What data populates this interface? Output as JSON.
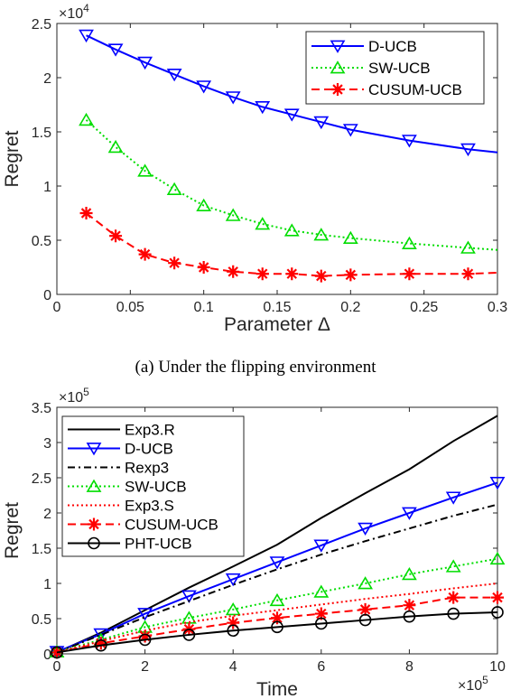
{
  "chart_data": [
    {
      "type": "line",
      "caption": "(a) Under the flipping environment",
      "xlabel": "Parameter Δ",
      "ylabel": "Regret",
      "xlim": [
        0,
        0.3
      ],
      "ylim": [
        0,
        25000
      ],
      "y_multiplier": "×10",
      "y_multiplier_exp": "4",
      "xticks": [
        "0",
        "0.05",
        "0.1",
        "0.15",
        "0.2",
        "0.25",
        "0.3"
      ],
      "yticks": [
        "0",
        "0.5",
        "1",
        "1.5",
        "2",
        "2.5"
      ],
      "legend_position": "top-right",
      "series": [
        {
          "name": "D-UCB",
          "color": "#0000ff",
          "marker": "triangle-down",
          "dash": "solid",
          "x": [
            0.02,
            0.04,
            0.06,
            0.08,
            0.1,
            0.12,
            0.14,
            0.16,
            0.18,
            0.2,
            0.24,
            0.28,
            0.3
          ],
          "y": [
            23900,
            22600,
            21400,
            20300,
            19200,
            18200,
            17300,
            16600,
            15900,
            15200,
            14200,
            13400,
            13100
          ],
          "markers_x": [
            0.02,
            0.04,
            0.06,
            0.08,
            0.1,
            0.12,
            0.14,
            0.16,
            0.18,
            0.2,
            0.24,
            0.28
          ]
        },
        {
          "name": "SW-UCB",
          "color": "#00dd00",
          "marker": "triangle-up",
          "dash": "dotted",
          "x": [
            0.02,
            0.04,
            0.06,
            0.08,
            0.1,
            0.12,
            0.14,
            0.16,
            0.18,
            0.2,
            0.24,
            0.28,
            0.3
          ],
          "y": [
            16100,
            13600,
            11400,
            9700,
            8200,
            7300,
            6500,
            5900,
            5500,
            5200,
            4700,
            4300,
            4100
          ],
          "markers_x": [
            0.02,
            0.04,
            0.06,
            0.08,
            0.1,
            0.12,
            0.14,
            0.16,
            0.18,
            0.2,
            0.24,
            0.28
          ]
        },
        {
          "name": "CUSUM-UCB",
          "color": "#ff0000",
          "marker": "asterisk",
          "dash": "dashed",
          "x": [
            0.02,
            0.04,
            0.06,
            0.08,
            0.1,
            0.12,
            0.14,
            0.16,
            0.18,
            0.2,
            0.24,
            0.28,
            0.3
          ],
          "y": [
            7500,
            5400,
            3700,
            2900,
            2500,
            2100,
            1900,
            1900,
            1700,
            1800,
            1900,
            1900,
            2000
          ],
          "markers_x": [
            0.02,
            0.04,
            0.06,
            0.08,
            0.1,
            0.12,
            0.14,
            0.16,
            0.18,
            0.2,
            0.24,
            0.28
          ]
        }
      ]
    },
    {
      "type": "line",
      "xlabel": "Time",
      "ylabel": "Regret",
      "xlim": [
        0,
        1000000
      ],
      "ylim": [
        0,
        350000
      ],
      "x_multiplier": "×10",
      "x_multiplier_exp": "5",
      "y_multiplier": "×10",
      "y_multiplier_exp": "5",
      "xticks": [
        "0",
        "2",
        "4",
        "6",
        "8",
        "10"
      ],
      "yticks": [
        "0",
        "0.5",
        "1",
        "1.5",
        "2",
        "2.5",
        "3",
        "3.5"
      ],
      "legend_position": "top-left",
      "series": [
        {
          "name": "Exp3.R",
          "color": "#000000",
          "marker": "none",
          "dash": "solid",
          "x": [
            0,
            100000,
            200000,
            300000,
            400000,
            500000,
            600000,
            700000,
            800000,
            900000,
            1000000
          ],
          "y": [
            2000,
            30000,
            62000,
            94000,
            124000,
            155000,
            193000,
            228000,
            262000,
            302000,
            338000
          ],
          "markers_x": []
        },
        {
          "name": "D-UCB",
          "color": "#0000ff",
          "marker": "triangle-down",
          "dash": "solid",
          "x": [
            0,
            100000,
            200000,
            300000,
            400000,
            500000,
            600000,
            700000,
            800000,
            900000,
            1000000
          ],
          "y": [
            3000,
            28000,
            57000,
            82000,
            106000,
            130000,
            154000,
            178000,
            200000,
            222000,
            243000
          ],
          "markers_x": [
            0,
            100000,
            200000,
            300000,
            400000,
            500000,
            600000,
            700000,
            800000,
            900000,
            1000000
          ]
        },
        {
          "name": "Rexp3",
          "color": "#000000",
          "marker": "none",
          "dash": "dashdot",
          "x": [
            0,
            100000,
            200000,
            300000,
            400000,
            500000,
            600000,
            700000,
            800000,
            900000,
            1000000
          ],
          "y": [
            2000,
            27000,
            52000,
            75000,
            98000,
            120000,
            141000,
            160000,
            178000,
            196000,
            212000
          ],
          "markers_x": []
        },
        {
          "name": "SW-UCB",
          "color": "#00dd00",
          "marker": "triangle-up",
          "dash": "dotted",
          "x": [
            0,
            100000,
            200000,
            300000,
            400000,
            500000,
            600000,
            700000,
            800000,
            900000,
            1000000
          ],
          "y": [
            3000,
            20000,
            38000,
            51000,
            63000,
            76000,
            88000,
            100000,
            113000,
            124000,
            135000
          ],
          "markers_x": [
            0,
            100000,
            200000,
            300000,
            400000,
            500000,
            600000,
            700000,
            800000,
            900000,
            1000000
          ]
        },
        {
          "name": "Exp3.S",
          "color": "#ff0000",
          "marker": "none",
          "dash": "dotted",
          "x": [
            0,
            100000,
            200000,
            300000,
            400000,
            500000,
            600000,
            700000,
            800000,
            900000,
            1000000
          ],
          "y": [
            2000,
            18000,
            33000,
            45000,
            54000,
            62000,
            70000,
            78000,
            85000,
            93000,
            100000
          ],
          "markers_x": []
        },
        {
          "name": "CUSUM-UCB",
          "color": "#ff0000",
          "marker": "asterisk",
          "dash": "dashed",
          "x": [
            0,
            100000,
            200000,
            300000,
            400000,
            500000,
            600000,
            700000,
            800000,
            900000,
            1000000
          ],
          "y": [
            2000,
            15000,
            25000,
            35000,
            44000,
            51000,
            57000,
            63000,
            69000,
            80000,
            80000
          ],
          "markers_x": [
            0,
            100000,
            200000,
            300000,
            400000,
            500000,
            600000,
            700000,
            800000,
            900000,
            1000000
          ]
        },
        {
          "name": "PHT-UCB",
          "color": "#000000",
          "marker": "circle",
          "dash": "solid",
          "x": [
            0,
            100000,
            200000,
            300000,
            400000,
            500000,
            600000,
            700000,
            800000,
            900000,
            1000000
          ],
          "y": [
            2000,
            12000,
            20000,
            27000,
            33000,
            38000,
            43000,
            48000,
            53000,
            57000,
            59000
          ],
          "markers_x": [
            0,
            100000,
            200000,
            300000,
            400000,
            500000,
            600000,
            700000,
            800000,
            900000,
            1000000
          ]
        }
      ]
    }
  ]
}
